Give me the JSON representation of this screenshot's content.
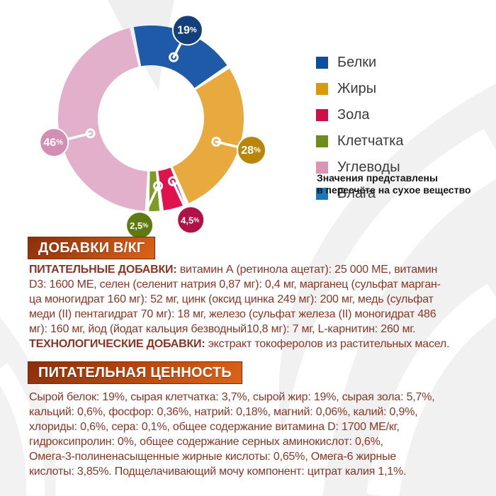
{
  "chart_data": {
    "type": "donut",
    "unit": "%",
    "start_angle_deg": -12,
    "legend_position": "right",
    "series": [
      {
        "name": "Белки",
        "value": 19,
        "display": "19%",
        "color": "#1E5AA8",
        "legend_color": "#0E4F9D",
        "callout_color": "#133F7D"
      },
      {
        "name": "Жиры",
        "value": 28,
        "display": "28%",
        "color": "#E8A93E",
        "legend_color": "#D7990F",
        "callout_color": "#B8860D"
      },
      {
        "name": "Зола",
        "value": 4.5,
        "display": "4,5%",
        "color": "#E0134F",
        "legend_color": "#CC1045",
        "callout_color": "#B01245"
      },
      {
        "name": "Клетчатка",
        "value": 2.5,
        "display": "2,5%",
        "color": "#7D9C24",
        "legend_color": "#6E8C1E",
        "callout_color": "#5D7A13"
      },
      {
        "name": "Углеводы",
        "value": 46,
        "display": "46%",
        "color": "#E2B0CA",
        "legend_color": "#D994B6",
        "callout_color": "#D38FB3"
      },
      {
        "name": "Влага",
        "value": 0,
        "display": "",
        "color": "#1779B7",
        "legend_color": "#1779B7",
        "callout_color": null
      }
    ],
    "note_lines": [
      "Значения представлены",
      "в пересчёте на сухое вещество"
    ]
  },
  "sections": {
    "additives": {
      "header": "ДОБАВКИ В/КГ",
      "lines": [
        {
          "bold": "ПИТАТЕЛЬНЫЕ ДОБАВКИ:",
          "text": " витамин А (ретинола ацетат): 25 000 МЕ, витамин"
        },
        {
          "bold": "",
          "text": "D3: 1600 МЕ, селен (селенит натрия 0,87 мг): 0,4 мг, марганец (сульфат марган-"
        },
        {
          "bold": "",
          "text": "ца моногидрат 160 мг): 52 мг, цинк (оксид цинка 249 мг): 200 мг, медь (сульфат"
        },
        {
          "bold": "",
          "text": "меди (II) пентагидрат 70 мг): 18 мг, железо (сульфат железа (II) моногидрат 486"
        },
        {
          "bold": "",
          "text": "мг): 160 мг, йод (йодат кальция безводный10,8 мг): 7 мг, L-карнитин: 260 мг."
        },
        {
          "bold": "ТЕХНОЛОГИЧЕСКИЕ ДОБАВКИ:",
          "text": " экстракт токоферолов из растительных масел."
        }
      ]
    },
    "nutrition": {
      "header": "ПИТАТЕЛЬНАЯ ЦЕННОСТЬ",
      "lines": [
        {
          "bold": "",
          "text": "Сырой белок: 19%, сырая клетчатка: 3,7%, сырой жир: 19%, сырая зола: 5,7%,"
        },
        {
          "bold": "",
          "text": "кальций: 0,6%, фосфор: 0,36%, натрий: 0,18%, магний: 0,06%, калий: 0,9%,"
        },
        {
          "bold": "",
          "text": "хлориды: 0,6%, сера: 0,1%, общее содержание витамина D: 1700 МЕ/кг,"
        },
        {
          "bold": "",
          "text": "гидроксипролин: 0%, общее содержание серных аминокислот: 0,6%,"
        },
        {
          "bold": "",
          "text": "Омега-3-полиненасыщенные жирные кислоты: 0,65%, Омега-6 жирные"
        },
        {
          "bold": "",
          "text": "кислоты: 3,85%. Подщелачивающий мочу компонент: цитрат калия 1,1%."
        }
      ]
    }
  }
}
